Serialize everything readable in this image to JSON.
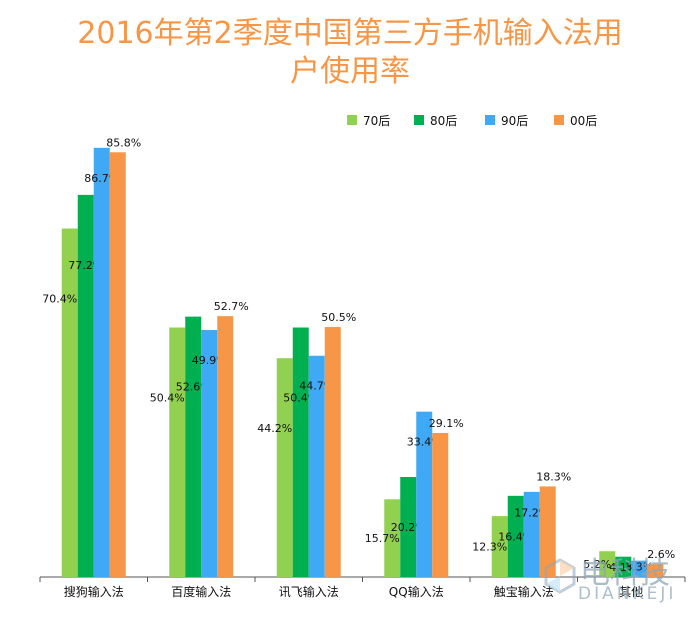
{
  "title": {
    "line1": "2016年第2季度中国第三方手机输入法用",
    "line2": "户使用率"
  },
  "watermark": {
    "text_cn": "电科技",
    "text_en": "DIANKEJI"
  },
  "colors": {
    "70后": "#92d050",
    "80后": "#00b050",
    "90后": "#3fa9f5",
    "00后": "#f79646",
    "title": "#f79646",
    "axis": "#555555"
  },
  "chart_data": {
    "type": "bar",
    "title": "2016年第2季度中国第三方手机输入法用户使用率",
    "xlabel": "",
    "ylabel": "",
    "ylim": [
      0,
      100
    ],
    "grid": false,
    "legend_position": "top-right",
    "categories": [
      "搜狗输入法",
      "百度输入法",
      "讯飞输入法",
      "QQ输入法",
      "触宝输入法",
      "其他"
    ],
    "series": [
      {
        "name": "70后",
        "values": [
          70.4,
          50.4,
          44.2,
          15.7,
          12.3,
          5.2
        ],
        "labels": [
          "70.4%",
          "50.4%",
          "44.2%",
          "15.7%",
          "12.3%",
          "5.2%"
        ]
      },
      {
        "name": "80后",
        "values": [
          77.2,
          52.6,
          50.4,
          20.2,
          16.4,
          4.1
        ],
        "labels": [
          "77.2%",
          "52.6%",
          "50.4%",
          "20.2%",
          "16.4%",
          "4.1%"
        ]
      },
      {
        "name": "90后",
        "values": [
          86.7,
          49.9,
          44.7,
          33.4,
          17.2,
          3.3
        ],
        "labels": [
          "86.7%",
          "49.9%",
          "44.7%",
          "33.4%",
          "17.2%",
          "3.3%"
        ]
      },
      {
        "name": "00后",
        "values": [
          85.8,
          52.7,
          50.5,
          29.1,
          18.3,
          2.6
        ],
        "labels": [
          "85.8%",
          "52.7%",
          "50.5%",
          "29.1%",
          "18.3%",
          "2.6%"
        ]
      }
    ]
  }
}
